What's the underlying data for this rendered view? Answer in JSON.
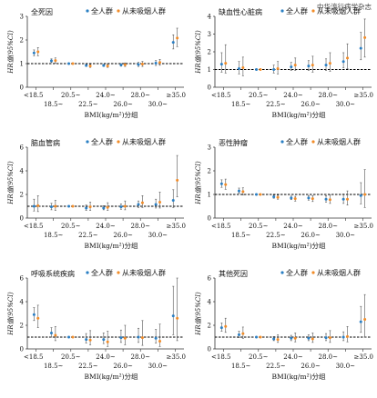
{
  "watermark": "中华流行病学杂志",
  "legend": {
    "all_label": "全人群",
    "never_label": "从未吸烟人群"
  },
  "colors": {
    "all": "#2a7fc4",
    "never": "#f28c28",
    "axis": "#333333",
    "errorbar": "#555555"
  },
  "x_axis": {
    "categories": [
      "<18.5",
      "18.5~",
      "20.5~",
      "22.5~",
      "24.0~",
      "26.0~",
      "28.0~",
      "30.0~",
      "≥35.0"
    ],
    "label": "BMI(kg/m²)分组"
  },
  "y_axis_label": "HR值(95%CI)",
  "chart_data": [
    {
      "type": "scatter",
      "title": "全死因",
      "ylim": [
        0,
        3
      ],
      "yticks": [
        0,
        1,
        2,
        3
      ],
      "reference_line": 1.0,
      "series": [
        {
          "name": "全人群",
          "values": [
            1.45,
            1.12,
            1.0,
            0.92,
            0.92,
            0.94,
            0.96,
            1.02,
            1.9
          ],
          "lower": [
            1.33,
            1.05,
            1.0,
            0.88,
            0.88,
            0.89,
            0.88,
            0.92,
            1.62
          ],
          "upper": [
            1.58,
            1.2,
            1.0,
            0.97,
            0.97,
            1.0,
            1.05,
            1.13,
            2.22
          ]
        },
        {
          "name": "从未吸烟人群",
          "values": [
            1.5,
            1.13,
            1.0,
            0.9,
            0.9,
            0.95,
            0.98,
            1.05,
            2.08
          ],
          "lower": [
            1.33,
            1.03,
            1.0,
            0.84,
            0.84,
            0.88,
            0.88,
            0.93,
            1.72
          ],
          "upper": [
            1.68,
            1.24,
            1.0,
            0.97,
            0.97,
            1.03,
            1.09,
            1.18,
            2.5
          ]
        }
      ]
    },
    {
      "type": "scatter",
      "title": "缺血性心脏病",
      "ylim": [
        0,
        4
      ],
      "yticks": [
        0,
        1,
        2,
        3,
        4
      ],
      "reference_line": 1.0,
      "series": [
        {
          "name": "全人群",
          "values": [
            1.3,
            1.05,
            1.0,
            1.0,
            1.15,
            1.2,
            1.25,
            1.45,
            2.2
          ],
          "lower": [
            0.85,
            0.75,
            1.0,
            0.8,
            0.95,
            0.95,
            0.95,
            1.1,
            1.55
          ],
          "upper": [
            1.95,
            1.45,
            1.0,
            1.25,
            1.4,
            1.5,
            1.6,
            1.95,
            3.1
          ]
        },
        {
          "name": "从未吸烟人群",
          "values": [
            1.35,
            1.1,
            1.0,
            1.05,
            1.25,
            1.25,
            1.35,
            1.65,
            2.8
          ],
          "lower": [
            0.8,
            0.65,
            1.0,
            0.75,
            0.95,
            0.85,
            0.9,
            1.05,
            1.7
          ],
          "upper": [
            2.4,
            1.7,
            1.0,
            1.45,
            1.65,
            1.75,
            1.95,
            2.45,
            3.85
          ]
        }
      ]
    },
    {
      "type": "scatter",
      "title": "脑血管病",
      "ylim": [
        0,
        6
      ],
      "yticks": [
        0,
        2,
        4,
        6
      ],
      "reference_line": 1.0,
      "series": [
        {
          "name": "全人群",
          "values": [
            1.0,
            0.95,
            1.0,
            0.85,
            0.85,
            0.95,
            1.15,
            1.15,
            1.5
          ],
          "lower": [
            0.6,
            0.7,
            1.0,
            0.65,
            0.7,
            0.75,
            0.9,
            0.85,
            0.9
          ],
          "upper": [
            1.6,
            1.25,
            1.0,
            1.1,
            1.05,
            1.2,
            1.45,
            1.6,
            2.4
          ]
        },
        {
          "name": "从未吸烟人群",
          "values": [
            1.05,
            1.0,
            1.0,
            0.95,
            0.9,
            1.0,
            1.3,
            1.35,
            3.2
          ],
          "lower": [
            0.55,
            0.65,
            1.0,
            0.65,
            0.65,
            0.7,
            0.9,
            0.85,
            1.8
          ],
          "upper": [
            1.9,
            1.5,
            1.0,
            1.35,
            1.3,
            1.45,
            1.9,
            2.2,
            5.3
          ]
        }
      ]
    },
    {
      "type": "scatter",
      "title": "恶性肿瘤",
      "ylim": [
        0,
        3
      ],
      "yticks": [
        0,
        1,
        2,
        3
      ],
      "reference_line": 1.0,
      "series": [
        {
          "name": "全人群",
          "values": [
            1.45,
            1.15,
            1.0,
            0.9,
            0.85,
            0.85,
            0.8,
            0.8,
            0.95
          ],
          "lower": [
            1.3,
            1.05,
            1.0,
            0.84,
            0.78,
            0.76,
            0.68,
            0.62,
            0.6
          ],
          "upper": [
            1.62,
            1.27,
            1.0,
            0.97,
            0.93,
            0.95,
            0.95,
            1.02,
            1.5
          ]
        },
        {
          "name": "从未吸烟人群",
          "values": [
            1.42,
            1.12,
            1.0,
            0.88,
            0.82,
            0.82,
            0.78,
            0.8,
            1.0
          ],
          "lower": [
            1.22,
            0.98,
            1.0,
            0.8,
            0.72,
            0.7,
            0.62,
            0.55,
            0.45
          ],
          "upper": [
            1.65,
            1.28,
            1.0,
            0.97,
            0.92,
            0.95,
            0.98,
            1.15,
            2.05
          ]
        }
      ]
    },
    {
      "type": "scatter",
      "title": "呼吸系统疾病",
      "ylim": [
        0,
        6
      ],
      "yticks": [
        0,
        2,
        4,
        6
      ],
      "reference_line": 1.0,
      "series": [
        {
          "name": "全人群",
          "values": [
            2.9,
            1.35,
            1.0,
            0.8,
            0.8,
            0.95,
            1.0,
            0.9,
            2.8
          ],
          "lower": [
            2.4,
            1.0,
            1.0,
            0.5,
            0.45,
            0.55,
            0.55,
            0.5,
            1.2
          ],
          "upper": [
            3.5,
            1.8,
            1.0,
            1.3,
            1.35,
            1.6,
            1.75,
            1.65,
            5.3
          ]
        },
        {
          "name": "从未吸烟人群",
          "values": [
            2.6,
            1.15,
            1.0,
            0.75,
            0.6,
            0.9,
            0.95,
            0.65,
            2.6
          ],
          "lower": [
            1.8,
            0.7,
            1.0,
            0.35,
            0.2,
            0.35,
            0.3,
            0.2,
            0.7
          ],
          "upper": [
            3.7,
            1.9,
            1.0,
            1.55,
            1.5,
            2.0,
            2.4,
            2.1,
            6.0
          ]
        }
      ]
    },
    {
      "type": "scatter",
      "title": "其他死因",
      "ylim": [
        0,
        6
      ],
      "yticks": [
        0,
        2,
        4,
        6
      ],
      "reference_line": 1.0,
      "series": [
        {
          "name": "全人群",
          "values": [
            1.8,
            1.2,
            1.0,
            0.85,
            0.9,
            0.9,
            0.95,
            1.0,
            2.3
          ],
          "lower": [
            1.5,
            0.95,
            1.0,
            0.7,
            0.7,
            0.7,
            0.7,
            0.7,
            1.4
          ],
          "upper": [
            2.2,
            1.5,
            1.0,
            1.05,
            1.15,
            1.2,
            1.3,
            1.45,
            3.6
          ]
        },
        {
          "name": "从未吸烟人群",
          "values": [
            1.9,
            1.3,
            1.0,
            0.8,
            0.9,
            0.85,
            0.95,
            1.05,
            2.5
          ],
          "lower": [
            1.4,
            0.9,
            1.0,
            0.55,
            0.6,
            0.55,
            0.55,
            0.6,
            1.0
          ],
          "upper": [
            2.6,
            1.85,
            1.0,
            1.2,
            1.35,
            1.35,
            1.55,
            1.9,
            4.6
          ]
        }
      ]
    }
  ]
}
